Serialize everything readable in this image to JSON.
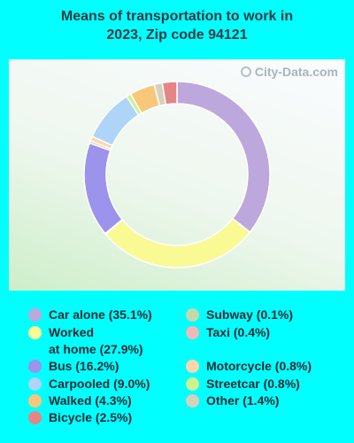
{
  "chart_data": {
    "type": "pie",
    "variant": "donut",
    "title": "Means of transportation to work in 2023, Zip code 94121",
    "watermark": "City-Data.com",
    "slices": [
      {
        "label": "Car alone (35.1%)",
        "value": 35.1,
        "color": "#bca8dc"
      },
      {
        "label": "Worked\nat home (27.9%)",
        "value": 27.9,
        "color": "#fafa94"
      },
      {
        "label": "Subway (0.1%)",
        "value": 0.1,
        "color": "#c5d8aa"
      },
      {
        "label": "Bus (16.2%)",
        "value": 16.2,
        "color": "#9b93ec"
      },
      {
        "label": "Taxi (0.4%)",
        "value": 0.4,
        "color": "#f0b8b8"
      },
      {
        "label": "Motorcycle (0.8%)",
        "value": 0.8,
        "color": "#fbd6ad"
      },
      {
        "label": "Carpooled (9.0%)",
        "value": 9.0,
        "color": "#aed4f8"
      },
      {
        "label": "Streetcar (0.8%)",
        "value": 0.8,
        "color": "#cdf28f"
      },
      {
        "label": "Walked (4.3%)",
        "value": 4.3,
        "color": "#f8c77b"
      },
      {
        "label": "Other (1.4%)",
        "value": 1.4,
        "color": "#d7d0bb"
      },
      {
        "label": "Bicycle (2.5%)",
        "value": 2.5,
        "color": "#e58585"
      }
    ]
  }
}
